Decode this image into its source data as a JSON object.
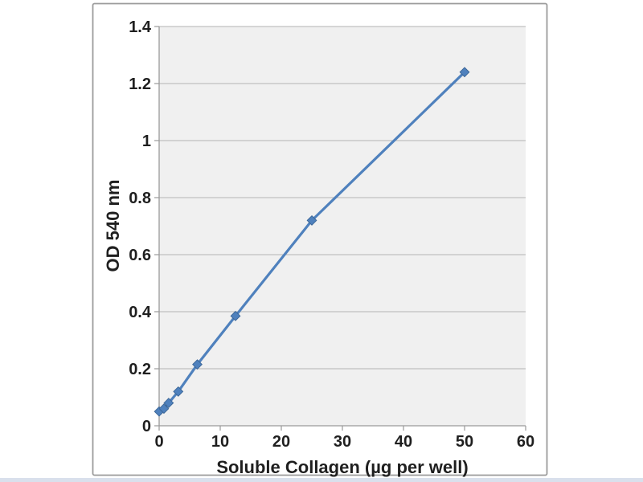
{
  "page": {
    "background": "#ffffff",
    "bottom_strip_color": "#d9e0ec"
  },
  "chart_frame": {
    "border_color": "#9b9b9b",
    "background": "#ffffff"
  },
  "chart_data": {
    "type": "line",
    "title": "",
    "xlabel": "Soluble Collagen (µg per well)",
    "ylabel": "OD 540 nm",
    "x": [
      0,
      0.78,
      1.56,
      3.125,
      6.25,
      12.5,
      25,
      50
    ],
    "y": [
      0.05,
      0.06,
      0.08,
      0.12,
      0.215,
      0.385,
      0.72,
      1.24
    ],
    "xlim": [
      0,
      60
    ],
    "ylim": [
      0,
      1.4
    ],
    "xticks": [
      0,
      10,
      20,
      30,
      40,
      50,
      60
    ],
    "xtick_labels": [
      "0",
      "10",
      "20",
      "30",
      "40",
      "50",
      "60"
    ],
    "yticks": [
      0,
      0.2,
      0.4,
      0.6,
      0.8,
      1,
      1.2,
      1.4
    ],
    "ytick_labels": [
      "0",
      "0.2",
      "0.4",
      "0.6",
      "0.8",
      "1",
      "1.2",
      "1.4"
    ],
    "grid": "horizontal",
    "legend": "none",
    "marker": "diamond",
    "series_color": "#4F81BD",
    "marker_edge_color": "#3A6596",
    "plot_bg": "#F0F0F0",
    "gridline_color": "#B3B3B3",
    "axis_line_color": "#9A9A9A",
    "tick_label_color": "#1F1F1F"
  }
}
